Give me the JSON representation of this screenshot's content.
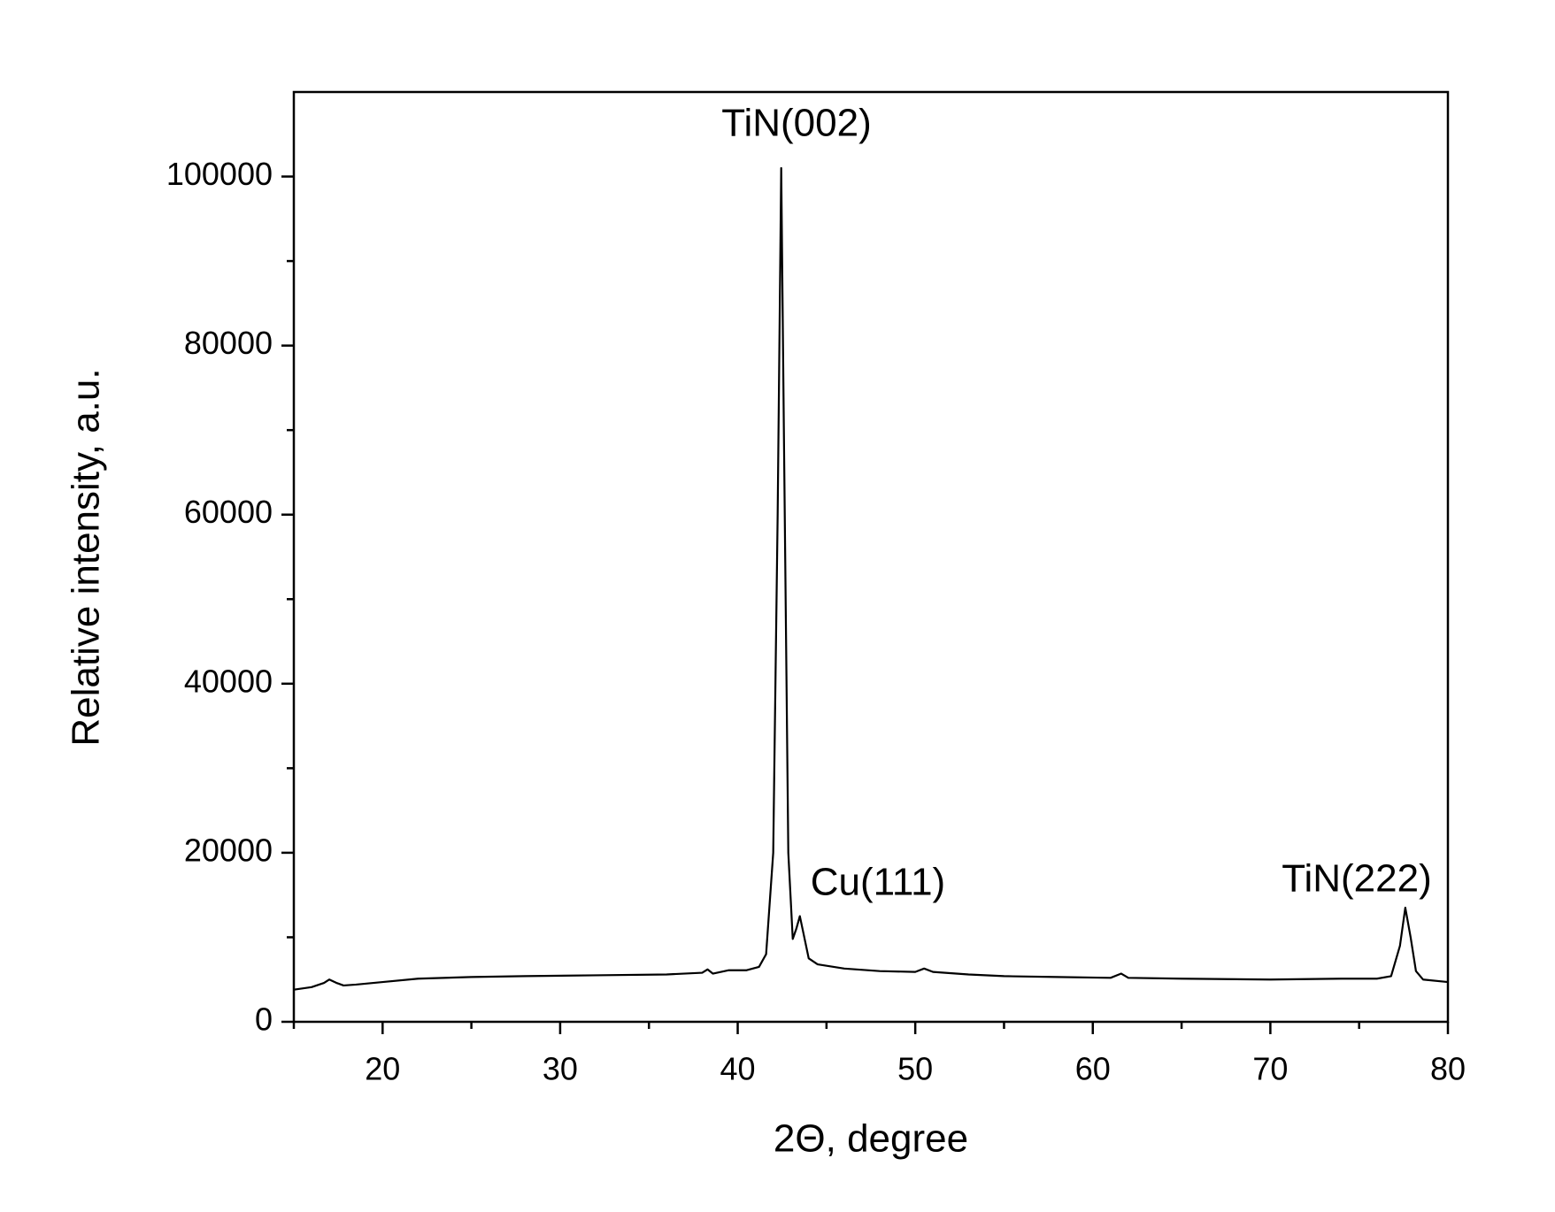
{
  "chart_data": {
    "type": "line",
    "xlabel": "2Θ, degree",
    "ylabel": "Relative intensity, a.u.",
    "annotations": [
      "TiN(002)",
      "Cu(111)",
      "TiN(222)"
    ],
    "color": "#000000",
    "xlim": [
      15,
      80
    ],
    "xticks": [
      20,
      30,
      40,
      50,
      60,
      70,
      80
    ],
    "ylim": [
      0,
      110000
    ],
    "yticks": [
      0,
      20000,
      40000,
      60000,
      80000,
      100000
    ],
    "x": [
      15,
      16,
      16.7,
      17,
      17.4,
      17.8,
      18.5,
      20,
      22,
      25,
      28,
      32,
      36,
      38,
      38.3,
      38.6,
      39.5,
      40.5,
      41.2,
      41.6,
      42,
      42.25,
      42.45,
      42.6,
      42.85,
      43.1,
      43.3,
      43.5,
      43.7,
      44,
      44.5,
      46,
      48,
      50,
      50.5,
      51,
      53,
      55,
      58,
      61,
      61.6,
      62,
      65,
      70,
      74,
      76,
      76.8,
      77.3,
      77.6,
      77.9,
      78.2,
      78.6,
      80
    ],
    "values": [
      3800,
      4100,
      4600,
      5000,
      4600,
      4300,
      4400,
      4700,
      5100,
      5300,
      5400,
      5500,
      5600,
      5800,
      6200,
      5700,
      6100,
      6100,
      6500,
      8000,
      20000,
      60000,
      101000,
      70000,
      20000,
      9800,
      11000,
      12500,
      10500,
      7500,
      6800,
      6300,
      6000,
      5900,
      6300,
      5900,
      5600,
      5400,
      5300,
      5200,
      5700,
      5200,
      5100,
      5000,
      5100,
      5100,
      5400,
      9000,
      13500,
      10000,
      6000,
      5000,
      4700
    ]
  }
}
